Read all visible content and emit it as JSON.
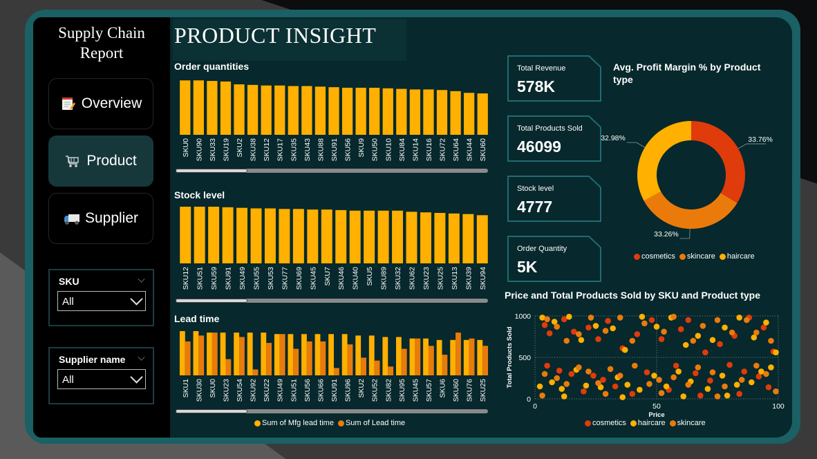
{
  "sidebar": {
    "report_title_line1": "Supply Chain",
    "report_title_line2": "Report",
    "nav": [
      {
        "label": "Overview",
        "icon": "notepad-icon"
      },
      {
        "label": "Product",
        "icon": "cart-icon"
      },
      {
        "label": "Supplier",
        "icon": "truck-icon"
      }
    ],
    "slicers": [
      {
        "title": "SKU",
        "value": "All"
      },
      {
        "title": "Supplier name",
        "value": "All"
      }
    ]
  },
  "page_title": "PRODUCT INSIGHT",
  "kpis": [
    {
      "label": "Total Revenue",
      "value": "578K"
    },
    {
      "label": "Total Products Sold",
      "value": "46099"
    },
    {
      "label": "Stock level",
      "value": "4777"
    },
    {
      "label": "Order Quantity",
      "value": "5K"
    }
  ],
  "colors": {
    "bar": "#ffb000",
    "bar_secondary": "#e87b0c",
    "cosmetics": "#e03b0a",
    "skincare": "#ea7b0b",
    "haircare": "#ffb000",
    "panel": "#07282c",
    "frame": "#1a6064"
  },
  "chart_data": [
    {
      "type": "bar",
      "title": "Order quantities",
      "categories": [
        "SKU0",
        "SKU90",
        "SKU33",
        "SKU19",
        "SKU2",
        "SKU38",
        "SKU12",
        "SKU17",
        "SKU35",
        "SKU43",
        "SKU88",
        "SKU91",
        "SKU56",
        "SKU9",
        "SKU50",
        "SKU10",
        "SKU84",
        "SKU14",
        "SKU16",
        "SKU72",
        "SKU64",
        "SKU44",
        "SKU60"
      ],
      "values": [
        96,
        96,
        95,
        94,
        89,
        88,
        87,
        87,
        86,
        86,
        85,
        84,
        83,
        83,
        83,
        82,
        81,
        80,
        80,
        79,
        77,
        74,
        73
      ],
      "ylim": [
        0,
        100
      ]
    },
    {
      "type": "bar",
      "title": "Stock level",
      "categories": [
        "SKU12",
        "SKU51",
        "SKU59",
        "SKU91",
        "SKU49",
        "SKU55",
        "SKU53",
        "SKU77",
        "SKU69",
        "SKU45",
        "SKU7",
        "SKU46",
        "SKU40",
        "SKU5",
        "SKU89",
        "SKU32",
        "SKU62",
        "SKU23",
        "SKU25",
        "SKU13",
        "SKU39",
        "SKU94"
      ],
      "values": [
        100,
        100,
        100,
        99,
        98,
        97,
        97,
        96,
        96,
        95,
        95,
        94,
        93,
        93,
        93,
        93,
        91,
        90,
        89,
        88,
        87,
        85
      ],
      "ylim": [
        0,
        100
      ]
    },
    {
      "type": "bar",
      "title": "Lead time",
      "categories": [
        "SKU1",
        "SKU30",
        "SKU0",
        "SKU23",
        "SKU54",
        "SKU92",
        "SKU22",
        "SKU49",
        "SKU51",
        "SKU56",
        "SKU66",
        "SKU91",
        "SKU96",
        "SKU2",
        "SKU52",
        "SKU82",
        "SKU95",
        "SKU45",
        "SKU57",
        "SKU6",
        "SKU60",
        "SKU76",
        "SKU25"
      ],
      "series": [
        {
          "name": "Sum of Mfg lead time",
          "values": [
            30,
            30,
            29,
            29,
            29,
            29,
            29,
            28,
            28,
            28,
            28,
            28,
            28,
            27,
            27,
            26,
            26,
            25,
            25,
            24,
            24,
            24,
            24
          ]
        },
        {
          "name": "Sum of Lead time",
          "values": [
            23,
            27,
            29,
            11,
            26,
            4,
            22,
            28,
            18,
            23,
            23,
            5,
            21,
            12,
            10,
            6,
            18,
            25,
            20,
            14,
            29,
            25,
            20
          ]
        }
      ],
      "ylim": [
        0,
        30
      ]
    },
    {
      "type": "pie",
      "title": "Avg. Profit Margin % by Product type",
      "categories": [
        "cosmetics",
        "skincare",
        "haircare"
      ],
      "values": [
        33.76,
        33.26,
        32.98
      ],
      "data_labels": [
        "33.76%",
        "33.26%",
        "32.98%"
      ],
      "legend_position": "bottom"
    },
    {
      "type": "scatter",
      "title": "Price and Total Products Sold by SKU and Product type",
      "xlabel": "Price",
      "ylabel": "Total Products Sold",
      "xlim": [
        0,
        100
      ],
      "ylim": [
        0,
        1000
      ],
      "xticks": [
        "0",
        "50",
        "100"
      ],
      "yticks": [
        "0",
        "500",
        "1000"
      ],
      "grid": true,
      "legend_position": "bottom",
      "series": [
        {
          "name": "cosmetics",
          "points": [
            [
              4,
              890
            ],
            [
              6,
              790
            ],
            [
              12,
              960
            ],
            [
              16,
              810
            ],
            [
              22,
              860
            ],
            [
              26,
              720
            ],
            [
              30,
              940
            ],
            [
              36,
              610
            ],
            [
              42,
              780
            ],
            [
              48,
              950
            ],
            [
              52,
              720
            ],
            [
              60,
              840
            ],
            [
              63,
              950
            ],
            [
              70,
              560
            ],
            [
              76,
              660
            ],
            [
              82,
              760
            ],
            [
              88,
              980
            ],
            [
              94,
              860
            ],
            [
              98,
              570
            ],
            [
              5,
              400
            ],
            [
              10,
              340
            ],
            [
              15,
              300
            ],
            [
              24,
              280
            ],
            [
              28,
              230
            ],
            [
              33,
              150
            ],
            [
              46,
              320
            ],
            [
              58,
              400
            ],
            [
              66,
              310
            ],
            [
              72,
              220
            ],
            [
              80,
              410
            ],
            [
              86,
              330
            ],
            [
              92,
              270
            ],
            [
              96,
              140
            ],
            [
              20,
              90
            ],
            [
              40,
              60
            ],
            [
              55,
              110
            ],
            [
              68,
              40
            ],
            [
              84,
              60
            ]
          ]
        },
        {
          "name": "haircare",
          "points": [
            [
              3,
              980
            ],
            [
              8,
              930
            ],
            [
              14,
              990
            ],
            [
              19,
              710
            ],
            [
              25,
              880
            ],
            [
              32,
              850
            ],
            [
              37,
              590
            ],
            [
              44,
              990
            ],
            [
              50,
              870
            ],
            [
              56,
              980
            ],
            [
              62,
              650
            ],
            [
              67,
              760
            ],
            [
              73,
              710
            ],
            [
              78,
              860
            ],
            [
              84,
              980
            ],
            [
              90,
              740
            ],
            [
              95,
              920
            ],
            [
              99,
              560
            ],
            [
              2,
              150
            ],
            [
              7,
              200
            ],
            [
              11,
              120
            ],
            [
              17,
              350
            ],
            [
              21,
              160
            ],
            [
              27,
              140
            ],
            [
              34,
              260
            ],
            [
              38,
              170
            ],
            [
              43,
              110
            ],
            [
              49,
              280
            ],
            [
              54,
              150
            ],
            [
              59,
              330
            ],
            [
              64,
              210
            ],
            [
              71,
              120
            ],
            [
              77,
              280
            ],
            [
              83,
              170
            ],
            [
              89,
              200
            ],
            [
              93,
              330
            ],
            [
              97,
              380
            ],
            [
              12,
              30
            ],
            [
              36,
              20
            ],
            [
              61,
              30
            ],
            [
              79,
              40
            ]
          ]
        },
        {
          "name": "skincare",
          "points": [
            [
              5,
              960
            ],
            [
              9,
              870
            ],
            [
              13,
              700
            ],
            [
              18,
              780
            ],
            [
              23,
              980
            ],
            [
              29,
              820
            ],
            [
              35,
              980
            ],
            [
              40,
              700
            ],
            [
              45,
              910
            ],
            [
              53,
              810
            ],
            [
              57,
              990
            ],
            [
              65,
              700
            ],
            [
              69,
              880
            ],
            [
              75,
              950
            ],
            [
              81,
              800
            ],
            [
              87,
              950
            ],
            [
              91,
              800
            ],
            [
              97,
              700
            ],
            [
              4,
              300
            ],
            [
              9,
              250
            ],
            [
              13,
              180
            ],
            [
              18,
              380
            ],
            [
              22,
              330
            ],
            [
              26,
              190
            ],
            [
              31,
              360
            ],
            [
              35,
              280
            ],
            [
              41,
              400
            ],
            [
              47,
              180
            ],
            [
              51,
              230
            ],
            [
              57,
              260
            ],
            [
              63,
              170
            ],
            [
              67,
              380
            ],
            [
              73,
              320
            ],
            [
              78,
              150
            ],
            [
              85,
              230
            ],
            [
              91,
              400
            ],
            [
              95,
              300
            ],
            [
              3,
              40
            ],
            [
              29,
              60
            ],
            [
              52,
              70
            ],
            [
              75,
              30
            ],
            [
              99,
              90
            ]
          ]
        }
      ]
    }
  ]
}
